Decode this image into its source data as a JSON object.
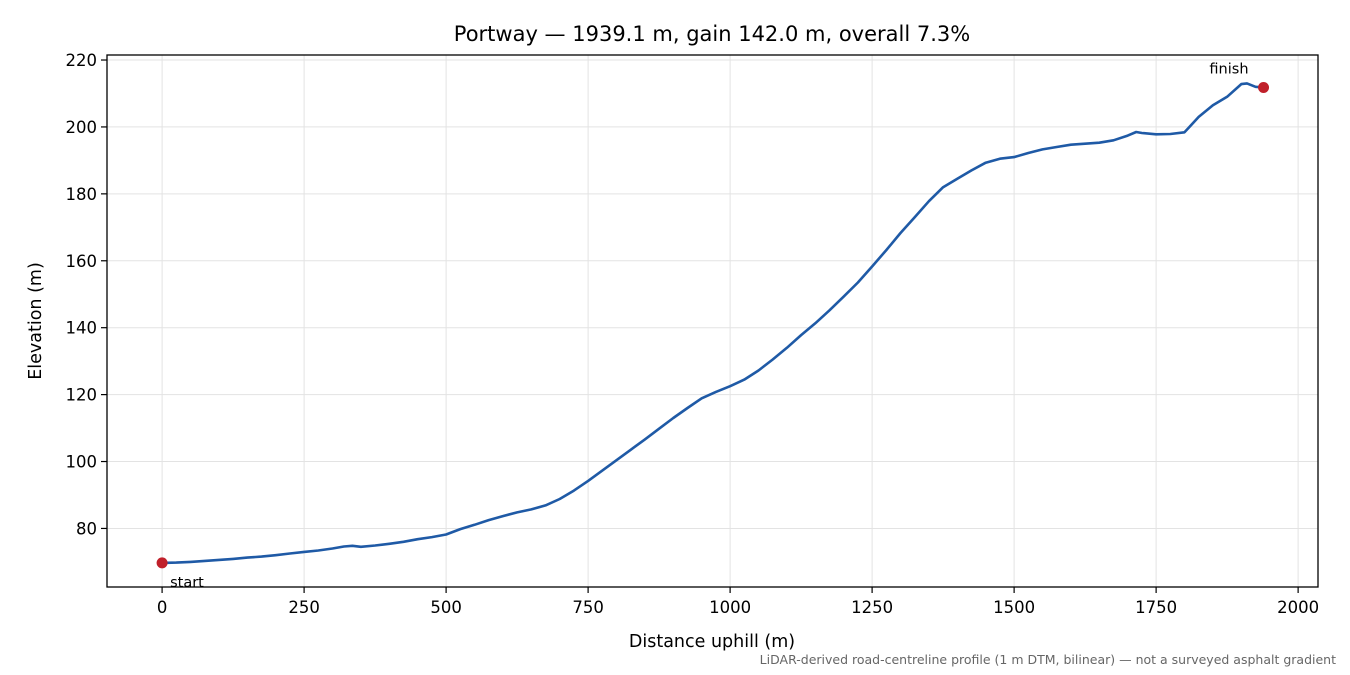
{
  "chart_data": {
    "type": "line",
    "title": "Portway — 1939.1 m, gain 142.0 m, overall 7.3%",
    "xlabel": "Distance uphill (m)",
    "ylabel": "Elevation (m)",
    "xlim": [
      -97,
      2035
    ],
    "ylim": [
      62.5,
      221.5
    ],
    "x_ticks": [
      0,
      250,
      500,
      750,
      1000,
      1250,
      1500,
      1750,
      2000
    ],
    "y_ticks": [
      80,
      100,
      120,
      140,
      160,
      180,
      200,
      220
    ],
    "grid": true,
    "colors": {
      "line": "#1f5aa6",
      "marker": "#c0202a",
      "grid": "#e3e3e3",
      "footnote": "#666666"
    },
    "series": [
      {
        "x": [
          0,
          25,
          50,
          75,
          100,
          125,
          150,
          175,
          200,
          225,
          250,
          275,
          300,
          320,
          335,
          350,
          375,
          400,
          425,
          450,
          475,
          500,
          525,
          550,
          575,
          600,
          625,
          650,
          675,
          700,
          725,
          750,
          775,
          800,
          825,
          850,
          875,
          900,
          925,
          950,
          975,
          1000,
          1025,
          1050,
          1075,
          1100,
          1125,
          1150,
          1175,
          1200,
          1225,
          1250,
          1275,
          1300,
          1325,
          1350,
          1375,
          1400,
          1425,
          1450,
          1475,
          1500,
          1525,
          1550,
          1575,
          1600,
          1625,
          1650,
          1675,
          1700,
          1715,
          1725,
          1750,
          1775,
          1800,
          1825,
          1850,
          1875,
          1900,
          1910,
          1925,
          1939.1
        ],
        "y": [
          69.7,
          69.8,
          70.0,
          70.3,
          70.6,
          70.9,
          71.3,
          71.6,
          72.0,
          72.5,
          73.0,
          73.4,
          74.0,
          74.6,
          74.8,
          74.5,
          74.9,
          75.4,
          76.0,
          76.8,
          77.4,
          78.2,
          79.8,
          81.1,
          82.5,
          83.7,
          84.8,
          85.7,
          86.9,
          88.8,
          91.3,
          94.2,
          97.3,
          100.4,
          103.5,
          106.6,
          109.8,
          113.0,
          116.0,
          118.9,
          120.8,
          122.5,
          124.5,
          127.2,
          130.5,
          134.0,
          137.8,
          141.3,
          145.2,
          149.3,
          153.5,
          158.3,
          163.2,
          168.3,
          173.0,
          177.8,
          182.0,
          184.5,
          187.0,
          189.3,
          190.5,
          191.0,
          192.2,
          193.3,
          194.0,
          194.7,
          195.0,
          195.3,
          196.0,
          197.4,
          198.5,
          198.2,
          197.8,
          197.9,
          198.4,
          203.0,
          206.5,
          209.0,
          212.8,
          213.0,
          212.0,
          211.8
        ]
      }
    ],
    "annotations": {
      "start": {
        "label": "start",
        "x": 0,
        "y": 69.7
      },
      "finish": {
        "label": "finish",
        "x": 1939.1,
        "y": 211.8
      }
    },
    "footnote": "LiDAR-derived road-centreline profile (1 m DTM, bilinear) — not a surveyed asphalt gradient"
  }
}
